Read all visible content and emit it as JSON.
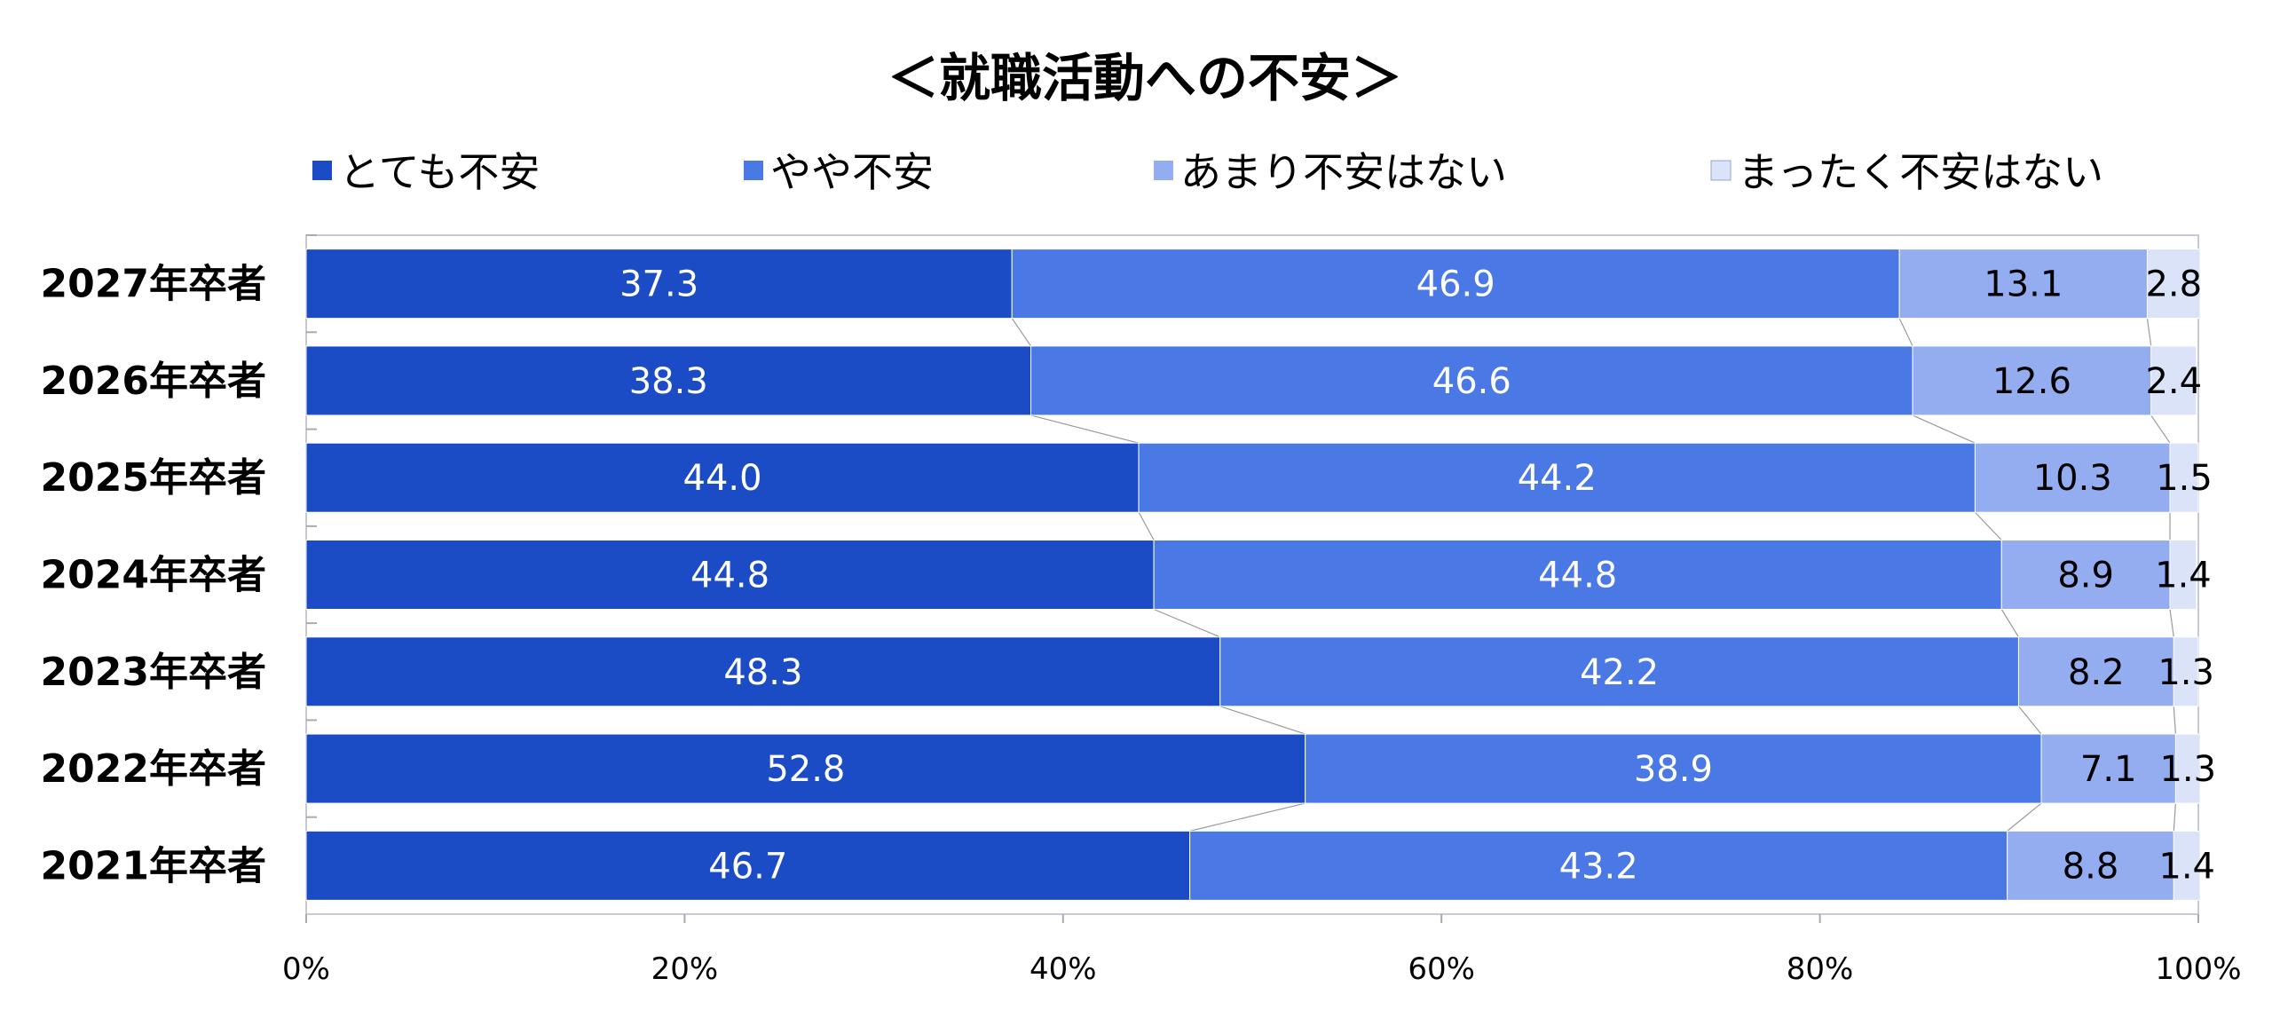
{
  "chart_data": {
    "type": "bar",
    "orientation": "horizontal",
    "stacked": "percent",
    "title": "＜就職活動への不安＞",
    "categories": [
      "2027年卒者",
      "2026年卒者",
      "2025年卒者",
      "2024年卒者",
      "2023年卒者",
      "2022年卒者",
      "2021年卒者"
    ],
    "series": [
      {
        "name": "とても不安",
        "color": "#1c4bc6",
        "label_color": "#ffffff",
        "values": [
          37.3,
          38.3,
          44.0,
          44.8,
          48.3,
          52.8,
          46.7
        ],
        "labels": [
          "37.3",
          "38.3",
          "44.0",
          "44.8",
          "48.3",
          "52.8",
          "46.7"
        ]
      },
      {
        "name": "やや不安",
        "color": "#4a78e4",
        "label_color": "#ffffff",
        "values": [
          46.9,
          46.6,
          44.2,
          44.8,
          42.2,
          38.9,
          43.2
        ],
        "labels": [
          "46.9",
          "46.6",
          "44.2",
          "44.8",
          "42.2",
          "38.9",
          "43.2"
        ]
      },
      {
        "name": "あまり不安はない",
        "color": "#93adf0",
        "label_color": "#000000",
        "values": [
          13.1,
          12.6,
          10.3,
          8.9,
          8.2,
          7.1,
          8.8
        ],
        "labels": [
          "13.1",
          "12.6",
          "10.3",
          "8.9",
          "8.2",
          "7.1",
          "8.8"
        ]
      },
      {
        "name": "まったく不安はない",
        "color": "#dbe3f8",
        "label_color": "#000000",
        "values": [
          2.8,
          2.4,
          1.5,
          1.4,
          1.3,
          1.3,
          1.4
        ],
        "labels": [
          "2.8",
          "2.4",
          "1.5",
          "1.4",
          "1.3",
          "1.3",
          "1.4"
        ]
      }
    ],
    "xlim": [
      0,
      100
    ],
    "x_ticks": [
      "0%",
      "20%",
      "40%",
      "60%",
      "80%",
      "100%"
    ],
    "legend_position": "top",
    "series_lines": true,
    "grid": false
  }
}
